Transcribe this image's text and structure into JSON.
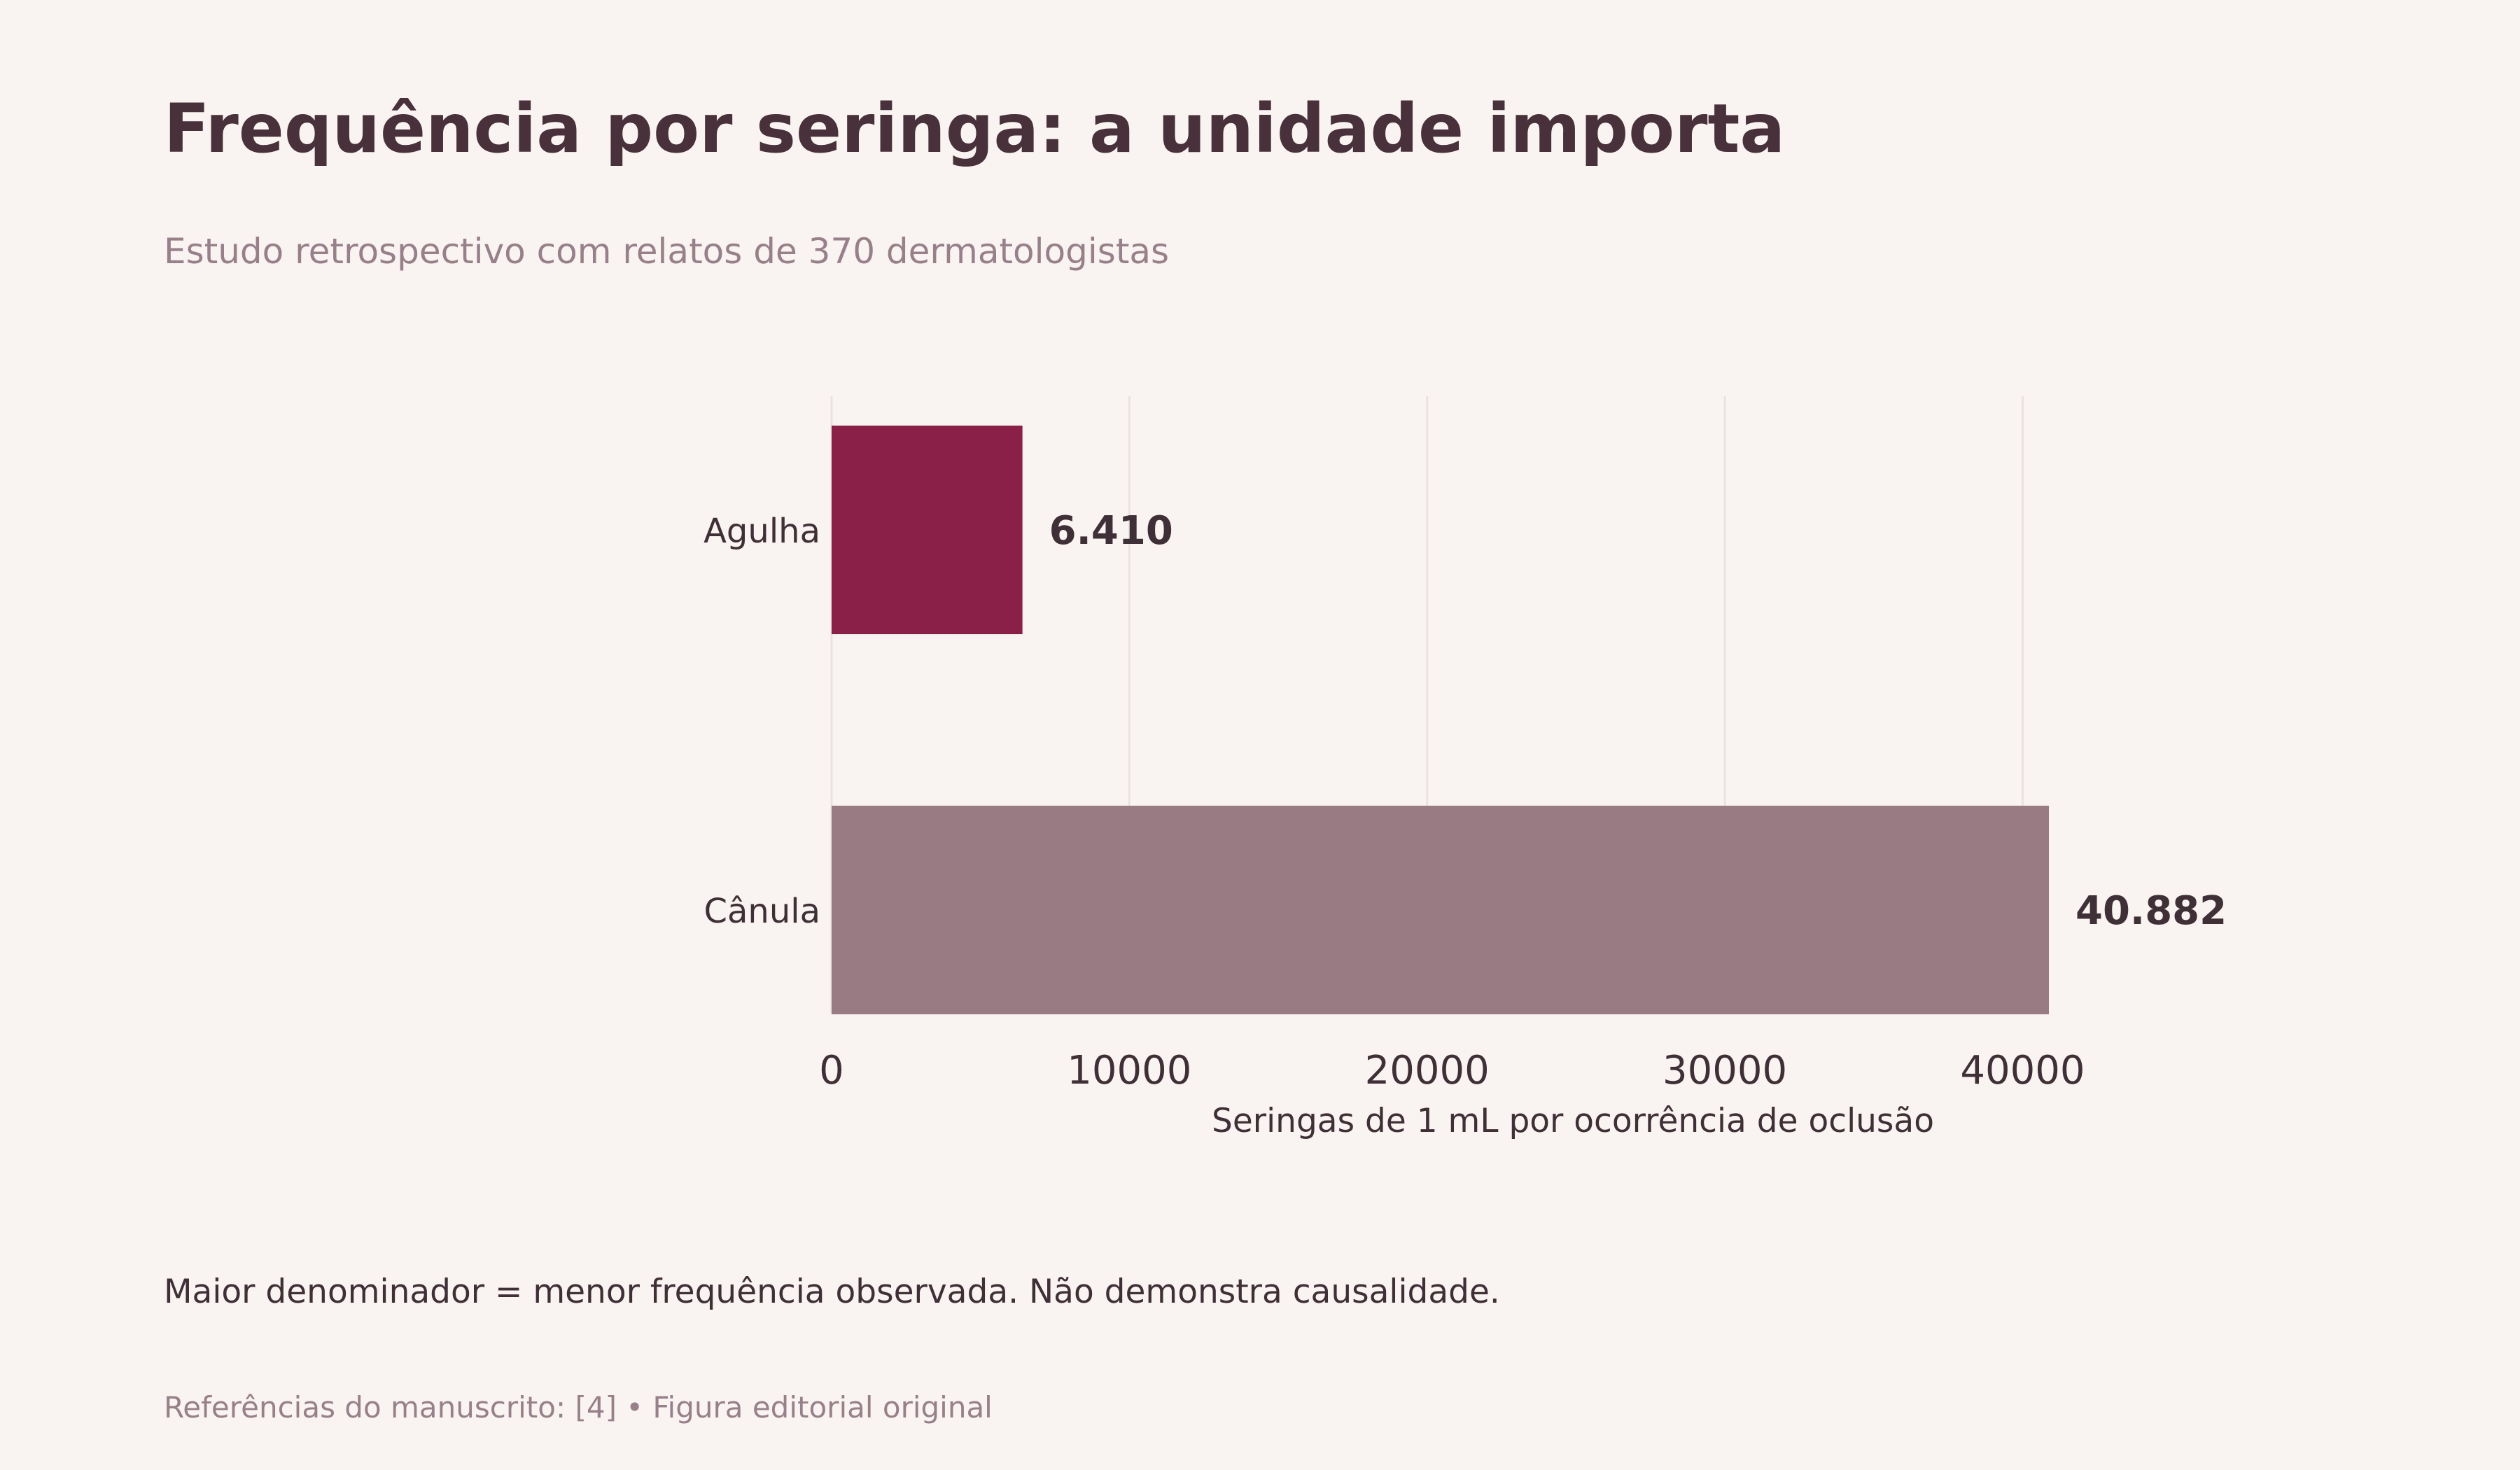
{
  "header": {
    "title": "Frequência por seringa: a unidade importa",
    "subtitle": "Estudo retrospectivo com relatos de 370 dermatologistas"
  },
  "chart_data": {
    "type": "bar",
    "orientation": "horizontal",
    "categories": [
      "Agulha",
      "Cânula"
    ],
    "values": [
      6410,
      40882
    ],
    "value_labels": [
      "6.410",
      "40.882"
    ],
    "colors": [
      "#8a1f48",
      "#987b83"
    ],
    "xlabel": "Seringas de 1 mL por ocorrência de oclusão",
    "ylabel": "",
    "xlim": [
      0,
      46800
    ],
    "xticks": [
      0,
      10000,
      20000,
      30000,
      40000
    ],
    "grid": "vertical",
    "legend": "none"
  },
  "footer": {
    "note": "Maior denominador = menor frequência observada. Não demonstra causalidade.",
    "source": "Referências do manuscrito: [4]  •  Figura editorial original"
  }
}
